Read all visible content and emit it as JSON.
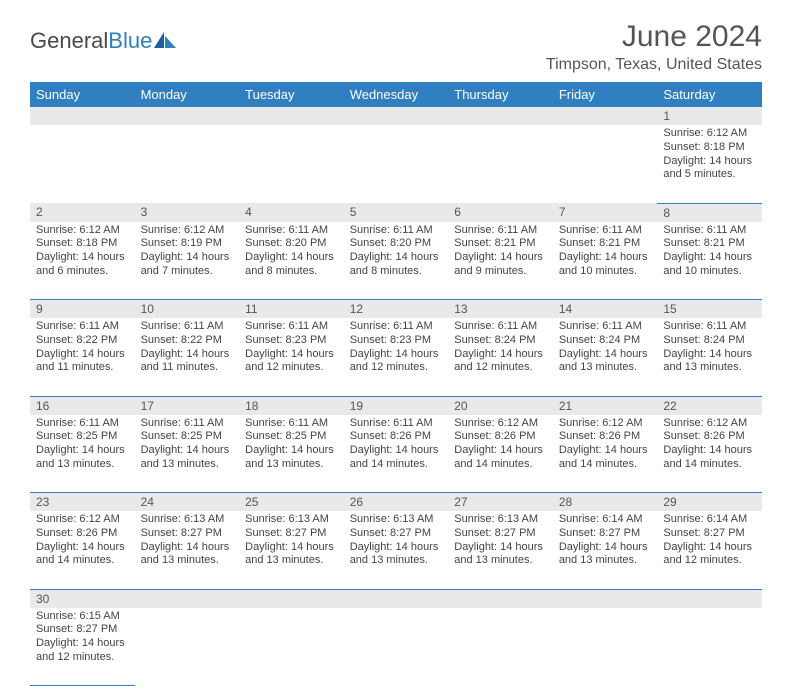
{
  "brand": {
    "text1": "General",
    "text2": "Blue"
  },
  "title": "June 2024",
  "location": "Timpson, Texas, United States",
  "colors": {
    "header_bg": "#2f7fc1",
    "header_text": "#ffffff",
    "daynum_bg": "#e9e9e9",
    "row_border": "#2f7fc1",
    "body_text": "#444444",
    "title_text": "#555555"
  },
  "typography": {
    "title_fontsize": 30,
    "location_fontsize": 16,
    "dayheader_fontsize": 13,
    "daynum_fontsize": 12,
    "cell_fontsize": 11
  },
  "day_headers": [
    "Sunday",
    "Monday",
    "Tuesday",
    "Wednesday",
    "Thursday",
    "Friday",
    "Saturday"
  ],
  "weeks": [
    [
      null,
      null,
      null,
      null,
      null,
      null,
      {
        "n": "1",
        "sunrise": "Sunrise: 6:12 AM",
        "sunset": "Sunset: 8:18 PM",
        "daylight": "Daylight: 14 hours and 5 minutes."
      }
    ],
    [
      {
        "n": "2",
        "sunrise": "Sunrise: 6:12 AM",
        "sunset": "Sunset: 8:18 PM",
        "daylight": "Daylight: 14 hours and 6 minutes."
      },
      {
        "n": "3",
        "sunrise": "Sunrise: 6:12 AM",
        "sunset": "Sunset: 8:19 PM",
        "daylight": "Daylight: 14 hours and 7 minutes."
      },
      {
        "n": "4",
        "sunrise": "Sunrise: 6:11 AM",
        "sunset": "Sunset: 8:20 PM",
        "daylight": "Daylight: 14 hours and 8 minutes."
      },
      {
        "n": "5",
        "sunrise": "Sunrise: 6:11 AM",
        "sunset": "Sunset: 8:20 PM",
        "daylight": "Daylight: 14 hours and 8 minutes."
      },
      {
        "n": "6",
        "sunrise": "Sunrise: 6:11 AM",
        "sunset": "Sunset: 8:21 PM",
        "daylight": "Daylight: 14 hours and 9 minutes."
      },
      {
        "n": "7",
        "sunrise": "Sunrise: 6:11 AM",
        "sunset": "Sunset: 8:21 PM",
        "daylight": "Daylight: 14 hours and 10 minutes."
      },
      {
        "n": "8",
        "sunrise": "Sunrise: 6:11 AM",
        "sunset": "Sunset: 8:21 PM",
        "daylight": "Daylight: 14 hours and 10 minutes."
      }
    ],
    [
      {
        "n": "9",
        "sunrise": "Sunrise: 6:11 AM",
        "sunset": "Sunset: 8:22 PM",
        "daylight": "Daylight: 14 hours and 11 minutes."
      },
      {
        "n": "10",
        "sunrise": "Sunrise: 6:11 AM",
        "sunset": "Sunset: 8:22 PM",
        "daylight": "Daylight: 14 hours and 11 minutes."
      },
      {
        "n": "11",
        "sunrise": "Sunrise: 6:11 AM",
        "sunset": "Sunset: 8:23 PM",
        "daylight": "Daylight: 14 hours and 12 minutes."
      },
      {
        "n": "12",
        "sunrise": "Sunrise: 6:11 AM",
        "sunset": "Sunset: 8:23 PM",
        "daylight": "Daylight: 14 hours and 12 minutes."
      },
      {
        "n": "13",
        "sunrise": "Sunrise: 6:11 AM",
        "sunset": "Sunset: 8:24 PM",
        "daylight": "Daylight: 14 hours and 12 minutes."
      },
      {
        "n": "14",
        "sunrise": "Sunrise: 6:11 AM",
        "sunset": "Sunset: 8:24 PM",
        "daylight": "Daylight: 14 hours and 13 minutes."
      },
      {
        "n": "15",
        "sunrise": "Sunrise: 6:11 AM",
        "sunset": "Sunset: 8:24 PM",
        "daylight": "Daylight: 14 hours and 13 minutes."
      }
    ],
    [
      {
        "n": "16",
        "sunrise": "Sunrise: 6:11 AM",
        "sunset": "Sunset: 8:25 PM",
        "daylight": "Daylight: 14 hours and 13 minutes."
      },
      {
        "n": "17",
        "sunrise": "Sunrise: 6:11 AM",
        "sunset": "Sunset: 8:25 PM",
        "daylight": "Daylight: 14 hours and 13 minutes."
      },
      {
        "n": "18",
        "sunrise": "Sunrise: 6:11 AM",
        "sunset": "Sunset: 8:25 PM",
        "daylight": "Daylight: 14 hours and 13 minutes."
      },
      {
        "n": "19",
        "sunrise": "Sunrise: 6:11 AM",
        "sunset": "Sunset: 8:26 PM",
        "daylight": "Daylight: 14 hours and 14 minutes."
      },
      {
        "n": "20",
        "sunrise": "Sunrise: 6:12 AM",
        "sunset": "Sunset: 8:26 PM",
        "daylight": "Daylight: 14 hours and 14 minutes."
      },
      {
        "n": "21",
        "sunrise": "Sunrise: 6:12 AM",
        "sunset": "Sunset: 8:26 PM",
        "daylight": "Daylight: 14 hours and 14 minutes."
      },
      {
        "n": "22",
        "sunrise": "Sunrise: 6:12 AM",
        "sunset": "Sunset: 8:26 PM",
        "daylight": "Daylight: 14 hours and 14 minutes."
      }
    ],
    [
      {
        "n": "23",
        "sunrise": "Sunrise: 6:12 AM",
        "sunset": "Sunset: 8:26 PM",
        "daylight": "Daylight: 14 hours and 14 minutes."
      },
      {
        "n": "24",
        "sunrise": "Sunrise: 6:13 AM",
        "sunset": "Sunset: 8:27 PM",
        "daylight": "Daylight: 14 hours and 13 minutes."
      },
      {
        "n": "25",
        "sunrise": "Sunrise: 6:13 AM",
        "sunset": "Sunset: 8:27 PM",
        "daylight": "Daylight: 14 hours and 13 minutes."
      },
      {
        "n": "26",
        "sunrise": "Sunrise: 6:13 AM",
        "sunset": "Sunset: 8:27 PM",
        "daylight": "Daylight: 14 hours and 13 minutes."
      },
      {
        "n": "27",
        "sunrise": "Sunrise: 6:13 AM",
        "sunset": "Sunset: 8:27 PM",
        "daylight": "Daylight: 14 hours and 13 minutes."
      },
      {
        "n": "28",
        "sunrise": "Sunrise: 6:14 AM",
        "sunset": "Sunset: 8:27 PM",
        "daylight": "Daylight: 14 hours and 13 minutes."
      },
      {
        "n": "29",
        "sunrise": "Sunrise: 6:14 AM",
        "sunset": "Sunset: 8:27 PM",
        "daylight": "Daylight: 14 hours and 12 minutes."
      }
    ],
    [
      {
        "n": "30",
        "sunrise": "Sunrise: 6:15 AM",
        "sunset": "Sunset: 8:27 PM",
        "daylight": "Daylight: 14 hours and 12 minutes."
      },
      null,
      null,
      null,
      null,
      null,
      null
    ]
  ]
}
